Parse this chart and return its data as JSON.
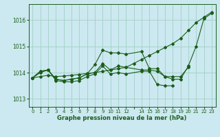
{
  "title": "Graphe pression niveau de la mer (hPa)",
  "background_color": "#cce8f0",
  "grid_color": "#99ccbb",
  "line_color": "#1a5e1a",
  "xlim": [
    -0.5,
    23.5
  ],
  "ylim": [
    1012.7,
    1016.6
  ],
  "yticks": [
    1013,
    1014,
    1015,
    1016
  ],
  "series": [
    {
      "x": [
        0,
        1,
        2,
        3,
        4,
        5,
        6,
        7,
        8,
        9,
        10,
        11,
        12,
        13,
        14,
        15,
        16,
        17,
        18,
        19,
        20,
        21,
        22,
        23
      ],
      "y": [
        1013.8,
        1013.85,
        1013.9,
        1013.85,
        1013.87,
        1013.9,
        1013.93,
        1013.97,
        1014.0,
        1014.05,
        1014.1,
        1014.15,
        1014.2,
        1014.35,
        1014.5,
        1014.65,
        1014.8,
        1014.95,
        1015.1,
        1015.3,
        1015.6,
        1015.9,
        1016.1,
        1016.3
      ]
    },
    {
      "x": [
        0,
        1,
        2,
        3,
        4,
        5,
        6,
        7,
        8,
        9,
        10,
        11,
        12,
        14,
        15,
        16,
        17,
        18,
        19,
        20,
        21,
        22,
        23
      ],
      "y": [
        1013.8,
        1014.05,
        1014.1,
        1013.75,
        1013.7,
        1013.75,
        1013.8,
        1013.95,
        1014.3,
        1014.85,
        1014.75,
        1014.75,
        1014.7,
        1014.8,
        1014.15,
        1014.15,
        1013.85,
        1013.75,
        1013.75,
        1014.25,
        1015.0,
        1016.05,
        1016.25
      ]
    },
    {
      "x": [
        0,
        1,
        2,
        3,
        4,
        5,
        6,
        7,
        8,
        9,
        10,
        11,
        12,
        14,
        15,
        16,
        17,
        18,
        19,
        20
      ],
      "y": [
        1013.8,
        1014.05,
        1014.1,
        1013.75,
        1013.7,
        1013.75,
        1013.8,
        1013.95,
        1014.0,
        1014.35,
        1014.1,
        1014.25,
        1014.2,
        1014.1,
        1014.1,
        1014.05,
        1013.85,
        1013.85,
        1013.85,
        1014.2
      ]
    },
    {
      "x": [
        0,
        1,
        2,
        3,
        4,
        5,
        6,
        7,
        8,
        9,
        10,
        11,
        12,
        14,
        15,
        16,
        17,
        18
      ],
      "y": [
        1013.8,
        1014.0,
        1014.1,
        1013.7,
        1013.65,
        1013.65,
        1013.7,
        1013.85,
        1013.95,
        1014.25,
        1013.95,
        1014.0,
        1013.95,
        1014.05,
        1014.05,
        1013.55,
        1013.5,
        1013.5
      ]
    }
  ]
}
